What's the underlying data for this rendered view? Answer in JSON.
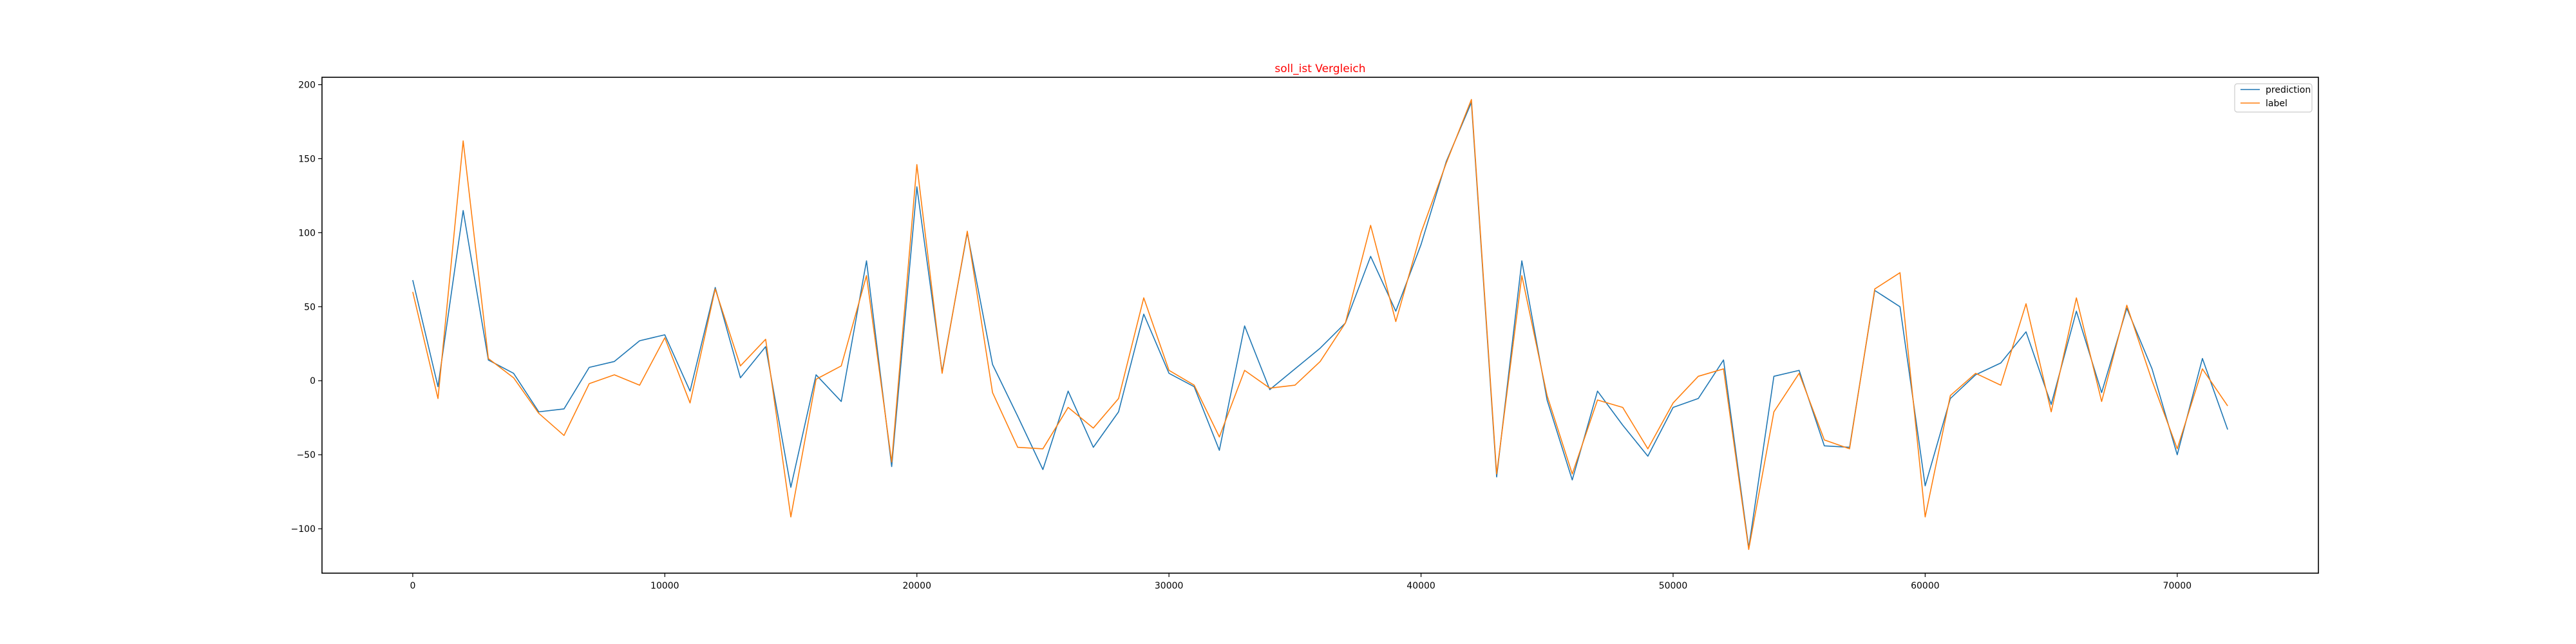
{
  "chart_data": {
    "type": "line",
    "title": "soll_ist Vergleich",
    "title_color": "#ff0000",
    "xlabel": "",
    "ylabel": "",
    "xlim": [
      -3600,
      75600
    ],
    "ylim": [
      -130,
      205
    ],
    "xticks": [
      0,
      10000,
      20000,
      30000,
      40000,
      50000,
      60000,
      70000
    ],
    "xtick_labels": [
      "0",
      "10000",
      "20000",
      "30000",
      "40000",
      "50000",
      "60000",
      "70000"
    ],
    "yticks": [
      -100,
      -50,
      0,
      50,
      100,
      150,
      200
    ],
    "ytick_labels": [
      "−100",
      "−50",
      "0",
      "50",
      "100",
      "150",
      "200"
    ],
    "grid": false,
    "legend_position": "top-right",
    "x": [
      0,
      1000,
      2000,
      3000,
      4000,
      5000,
      6000,
      7000,
      8000,
      9000,
      10000,
      11000,
      12000,
      13000,
      14000,
      15000,
      16000,
      17000,
      18000,
      19000,
      20000,
      21000,
      22000,
      23000,
      24000,
      25000,
      26000,
      27000,
      28000,
      29000,
      30000,
      31000,
      32000,
      33000,
      34000,
      35000,
      36000,
      37000,
      38000,
      39000,
      40000,
      41000,
      42000,
      43000,
      44000,
      45000,
      46000,
      47000,
      48000,
      49000,
      50000,
      51000,
      52000,
      53000,
      54000,
      55000,
      56000,
      57000,
      58000,
      59000,
      60000,
      61000,
      62000,
      63000,
      64000,
      65000,
      66000,
      67000,
      68000,
      69000,
      70000,
      71000,
      72000
    ],
    "series": [
      {
        "name": "prediction",
        "color": "#1f77b4",
        "values": [
          68,
          -4,
          115,
          14,
          5,
          -21,
          -19,
          9,
          13,
          27,
          31,
          -7,
          63,
          2,
          23,
          -72,
          4,
          -14,
          81,
          -58,
          131,
          6,
          100,
          11,
          -24,
          -60,
          -7,
          -45,
          -21,
          45,
          5,
          -4,
          -47,
          37,
          -6,
          8,
          22,
          39,
          84,
          47,
          92,
          148,
          188,
          -65,
          81,
          -13,
          -67,
          -7,
          -30,
          -51,
          -18,
          -12,
          14,
          -113,
          3,
          7,
          -44,
          -45,
          61,
          50,
          -71,
          -12,
          4,
          12,
          33,
          -16,
          47,
          -8,
          49,
          8,
          -50,
          15,
          -33
        ]
      },
      {
        "name": "label",
        "color": "#ff7f0e",
        "values": [
          60,
          -12,
          162,
          15,
          2,
          -22,
          -37,
          -2,
          4,
          -3,
          29,
          -15,
          62,
          10,
          28,
          -92,
          1,
          10,
          71,
          -55,
          146,
          5,
          101,
          -8,
          -45,
          -46,
          -18,
          -32,
          -12,
          56,
          7,
          -3,
          -38,
          7,
          -5,
          -3,
          13,
          39,
          105,
          40,
          100,
          147,
          190,
          -63,
          71,
          -10,
          -63,
          -13,
          -18,
          -46,
          -15,
          3,
          8,
          -114,
          -21,
          5,
          -40,
          -46,
          62,
          73,
          -92,
          -10,
          5,
          -3,
          52,
          -21,
          56,
          -14,
          51,
          0,
          -46,
          8,
          -17
        ]
      }
    ]
  }
}
